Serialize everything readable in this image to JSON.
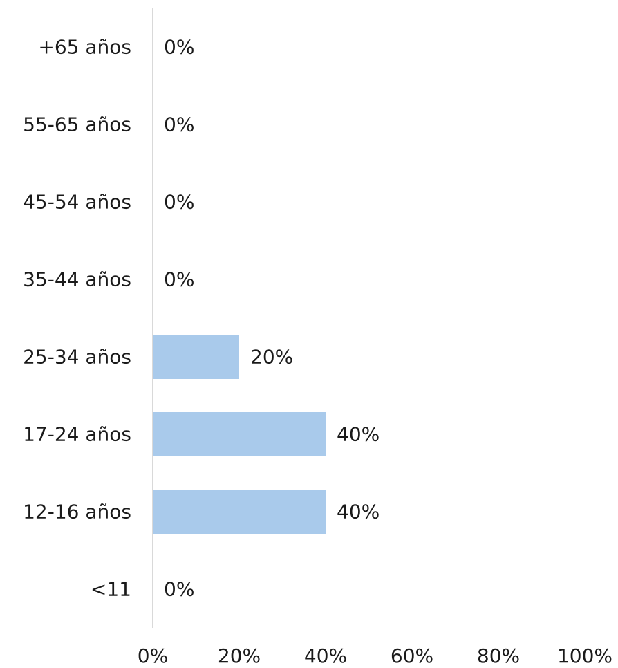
{
  "chart_data": {
    "type": "bar",
    "orientation": "horizontal",
    "categories": [
      "+65 años",
      "55-65 años",
      "45-54 años",
      "35-44 años",
      "25-34 años",
      "17-24 años",
      "12-16 años",
      "<11"
    ],
    "values": [
      0,
      0,
      0,
      0,
      20,
      40,
      40,
      0
    ],
    "data_labels": [
      "0%",
      "0%",
      "0%",
      "0%",
      "20%",
      "40%",
      "40%",
      "0%"
    ],
    "xlim": [
      0,
      100
    ],
    "x_ticks": [
      "0%",
      "20%",
      "40%",
      "60%",
      "80%",
      "100%"
    ],
    "grid": false,
    "legend": "none",
    "colors": {
      "bar": "#a9caeb",
      "axis": "#d9d9d9",
      "text": "#1a1a1a"
    }
  }
}
